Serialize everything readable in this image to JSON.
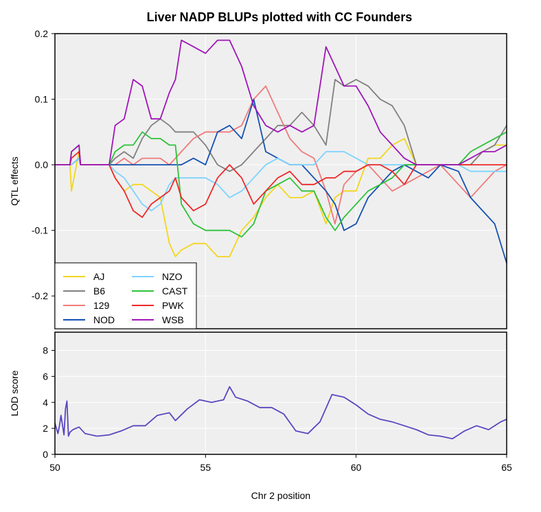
{
  "chart_data": {
    "type": "line",
    "title": "Liver NADP BLUPs plotted with CC Founders",
    "xlabel": "Chr 2 position",
    "xlim": [
      50,
      65
    ],
    "xticks": [
      50,
      55,
      60,
      65
    ],
    "grid": true,
    "panels": [
      {
        "id": "effects",
        "ylabel": "QTL effects",
        "ylim": [
          -0.25,
          0.2
        ],
        "yticks": [
          0.2,
          0.1,
          0.0,
          -0.1,
          -0.2
        ],
        "ytick_labels": [
          "0.2",
          "0.1",
          "0.0",
          "-0.1",
          "-0.2"
        ],
        "legend_position": "bottom-left",
        "series": [
          {
            "name": "AJ",
            "color": "#F2D61E",
            "x": [
              50,
              50.5,
              50.55,
              50.8,
              50.85,
              51.8,
              52,
              52.3,
              52.6,
              52.9,
              53.2,
              53.5,
              53.8,
              54.0,
              54.2,
              54.6,
              55.0,
              55.4,
              55.8,
              56.2,
              56.6,
              57.0,
              57.4,
              57.8,
              58.2,
              58.6,
              59.0,
              59.3,
              59.6,
              60.0,
              60.4,
              60.8,
              61.2,
              61.6,
              62.0,
              62.4,
              62.8,
              63.4,
              63.8,
              64.2,
              64.6,
              65.0
            ],
            "y": [
              0,
              0,
              -0.04,
              0.02,
              0,
              0,
              -0.02,
              -0.04,
              -0.03,
              -0.03,
              -0.04,
              -0.05,
              -0.12,
              -0.14,
              -0.13,
              -0.12,
              -0.12,
              -0.14,
              -0.14,
              -0.1,
              -0.08,
              -0.05,
              -0.03,
              -0.05,
              -0.05,
              -0.04,
              -0.09,
              -0.05,
              -0.04,
              -0.04,
              0.01,
              0.01,
              0.03,
              0.04,
              0.0,
              0.0,
              0.0,
              0.0,
              0.0,
              0.02,
              0.03,
              0.03
            ]
          },
          {
            "name": "B6",
            "color": "#808080",
            "x": [
              50,
              50.5,
              50.55,
              50.8,
              50.85,
              51.8,
              52,
              52.3,
              52.6,
              52.9,
              53.2,
              53.5,
              53.8,
              54.0,
              54.2,
              54.6,
              55.0,
              55.4,
              55.8,
              56.2,
              56.6,
              57.0,
              57.4,
              57.8,
              58.2,
              58.6,
              59.0,
              59.3,
              59.6,
              60.0,
              60.4,
              60.8,
              61.2,
              61.6,
              62.0,
              62.4,
              62.8,
              63.4,
              63.8,
              64.2,
              64.6,
              65.0
            ],
            "y": [
              0,
              0,
              0.02,
              0.03,
              0,
              0,
              0.01,
              0.02,
              0.01,
              0.04,
              0.06,
              0.07,
              0.06,
              0.05,
              0.05,
              0.05,
              0.03,
              0.0,
              -0.01,
              0.0,
              0.02,
              0.04,
              0.06,
              0.06,
              0.08,
              0.06,
              0.03,
              0.13,
              0.12,
              0.13,
              0.12,
              0.1,
              0.09,
              0.06,
              0.0,
              0.0,
              0.0,
              0.0,
              0.0,
              0.02,
              0.03,
              0.06
            ]
          },
          {
            "name": "129",
            "color": "#F07A7A",
            "x": [
              50,
              50.5,
              50.55,
              50.8,
              50.85,
              51.8,
              52,
              52.3,
              52.6,
              52.9,
              53.2,
              53.5,
              53.8,
              54.0,
              54.2,
              54.6,
              55.0,
              55.4,
              55.8,
              56.2,
              56.6,
              57.0,
              57.4,
              57.8,
              58.2,
              58.6,
              59.0,
              59.3,
              59.6,
              60.0,
              60.4,
              60.8,
              61.2,
              61.6,
              62.0,
              62.4,
              62.8,
              63.4,
              63.8,
              64.2,
              64.6,
              65.0
            ],
            "y": [
              0,
              0,
              0.0,
              0.01,
              0,
              0,
              0.0,
              0.01,
              0.0,
              0.01,
              0.01,
              0.01,
              0.0,
              0.01,
              0.02,
              0.04,
              0.05,
              0.05,
              0.05,
              0.06,
              0.1,
              0.12,
              0.08,
              0.04,
              0.02,
              0.01,
              -0.04,
              -0.09,
              -0.03,
              -0.01,
              0.0,
              -0.02,
              -0.04,
              -0.03,
              -0.02,
              -0.01,
              0.0,
              -0.03,
              -0.05,
              -0.03,
              -0.01,
              0.0
            ]
          },
          {
            "name": "NOD",
            "color": "#1451B0",
            "x": [
              50,
              50.5,
              50.55,
              50.8,
              50.85,
              51.8,
              52,
              52.3,
              52.6,
              52.9,
              53.2,
              53.5,
              53.8,
              54.0,
              54.2,
              54.6,
              55.0,
              55.4,
              55.8,
              56.2,
              56.6,
              57.0,
              57.4,
              57.8,
              58.2,
              58.6,
              59.0,
              59.3,
              59.6,
              60.0,
              60.4,
              60.8,
              61.2,
              61.6,
              62.0,
              62.4,
              62.8,
              63.4,
              63.8,
              64.2,
              64.6,
              65.0
            ],
            "y": [
              0,
              0,
              0.0,
              0.01,
              0,
              0,
              0.0,
              0.0,
              0.0,
              0.0,
              0.0,
              0.0,
              0.0,
              0.0,
              0.0,
              0.01,
              0.0,
              0.05,
              0.06,
              0.04,
              0.1,
              0.02,
              0.01,
              0.0,
              0.0,
              -0.02,
              -0.04,
              -0.06,
              -0.1,
              -0.09,
              -0.05,
              -0.03,
              -0.01,
              0.0,
              -0.01,
              -0.02,
              0.0,
              -0.01,
              -0.05,
              -0.07,
              -0.09,
              -0.15
            ]
          },
          {
            "name": "NZO",
            "color": "#7DD3FF",
            "x": [
              50,
              50.5,
              50.55,
              50.8,
              50.85,
              51.8,
              52,
              52.3,
              52.6,
              52.9,
              53.2,
              53.5,
              53.8,
              54.0,
              54.2,
              54.6,
              55.0,
              55.4,
              55.8,
              56.2,
              56.6,
              57.0,
              57.4,
              57.8,
              58.2,
              58.6,
              59.0,
              59.3,
              59.6,
              60.0,
              60.4,
              60.8,
              61.2,
              61.6,
              62.0,
              62.4,
              62.8,
              63.4,
              63.8,
              64.2,
              64.6,
              65.0
            ],
            "y": [
              0,
              0,
              0.0,
              0.01,
              0,
              0,
              -0.01,
              -0.02,
              -0.04,
              -0.06,
              -0.07,
              -0.06,
              -0.03,
              -0.02,
              -0.02,
              -0.02,
              -0.02,
              -0.03,
              -0.05,
              -0.04,
              -0.02,
              0.0,
              0.01,
              0.0,
              0.0,
              0.0,
              0.02,
              0.02,
              0.02,
              0.01,
              0.0,
              0.0,
              0.0,
              0.0,
              0.0,
              0.0,
              0.0,
              0.0,
              -0.01,
              -0.01,
              -0.01,
              -0.01
            ]
          },
          {
            "name": "CAST",
            "color": "#2EC23A",
            "x": [
              50,
              50.5,
              50.55,
              50.8,
              50.85,
              51.8,
              52,
              52.3,
              52.6,
              52.9,
              53.2,
              53.5,
              53.8,
              54.0,
              54.2,
              54.6,
              55.0,
              55.4,
              55.8,
              56.2,
              56.6,
              57.0,
              57.4,
              57.8,
              58.2,
              58.6,
              59.0,
              59.3,
              59.6,
              60.0,
              60.4,
              60.8,
              61.2,
              61.6,
              62.0,
              62.4,
              62.8,
              63.4,
              63.8,
              64.2,
              64.6,
              65.0
            ],
            "y": [
              0,
              0,
              0.02,
              0.03,
              0,
              0,
              0.02,
              0.03,
              0.03,
              0.05,
              0.04,
              0.04,
              0.03,
              0.03,
              -0.06,
              -0.09,
              -0.1,
              -0.1,
              -0.1,
              -0.11,
              -0.09,
              -0.04,
              -0.03,
              -0.02,
              -0.04,
              -0.04,
              -0.08,
              -0.1,
              -0.08,
              -0.06,
              -0.04,
              -0.03,
              -0.02,
              0.0,
              0.0,
              0.0,
              0.0,
              0.0,
              0.02,
              0.03,
              0.04,
              0.05
            ]
          },
          {
            "name": "PWK",
            "color": "#F02828",
            "x": [
              50,
              50.5,
              50.55,
              50.8,
              50.85,
              51.8,
              52,
              52.3,
              52.6,
              52.9,
              53.2,
              53.5,
              53.8,
              54.0,
              54.2,
              54.6,
              55.0,
              55.4,
              55.8,
              56.2,
              56.6,
              57.0,
              57.4,
              57.8,
              58.2,
              58.6,
              59.0,
              59.3,
              59.6,
              60.0,
              60.4,
              60.8,
              61.2,
              61.6,
              62.0,
              62.4,
              62.8,
              63.4,
              63.8,
              64.2,
              64.6,
              65.0
            ],
            "y": [
              0,
              0,
              0.01,
              0.02,
              0,
              0,
              -0.02,
              -0.04,
              -0.07,
              -0.08,
              -0.06,
              -0.05,
              -0.04,
              -0.02,
              -0.05,
              -0.07,
              -0.06,
              -0.02,
              0.0,
              -0.02,
              -0.06,
              -0.04,
              -0.02,
              -0.01,
              -0.03,
              -0.03,
              -0.02,
              -0.02,
              -0.01,
              -0.01,
              0.0,
              0.0,
              -0.01,
              -0.03,
              0.0,
              0.0,
              0.0,
              0.0,
              0.0,
              0.0,
              0.0,
              0.0
            ]
          },
          {
            "name": "WSB",
            "color": "#A014B8",
            "x": [
              50,
              50.5,
              50.55,
              50.8,
              50.85,
              51.8,
              52,
              52.3,
              52.6,
              52.9,
              53.2,
              53.5,
              53.8,
              54.0,
              54.2,
              54.6,
              55.0,
              55.4,
              55.8,
              56.2,
              56.6,
              57.0,
              57.4,
              57.8,
              58.2,
              58.6,
              59.0,
              59.3,
              59.6,
              60.0,
              60.4,
              60.8,
              61.2,
              61.6,
              62.0,
              62.4,
              62.8,
              63.4,
              63.8,
              64.2,
              64.6,
              65.0
            ],
            "y": [
              0,
              0,
              0.02,
              0.03,
              0,
              0,
              0.06,
              0.07,
              0.13,
              0.12,
              0.07,
              0.07,
              0.11,
              0.13,
              0.19,
              0.18,
              0.17,
              0.19,
              0.19,
              0.15,
              0.09,
              0.06,
              0.05,
              0.06,
              0.05,
              0.06,
              0.18,
              0.15,
              0.12,
              0.12,
              0.09,
              0.05,
              0.03,
              0.01,
              0.0,
              0.0,
              0.0,
              0.0,
              0.01,
              0.02,
              0.02,
              0.03
            ]
          }
        ]
      },
      {
        "id": "lod",
        "ylabel": "LOD score",
        "ylim": [
          0,
          9.4
        ],
        "yticks": [
          0,
          2,
          4,
          6,
          8
        ],
        "ytick_labels": [
          "0",
          "2",
          "4",
          "6",
          "8"
        ],
        "series": [
          {
            "name": "",
            "color": "#5A46C0",
            "x": [
              50,
              50.1,
              50.15,
              50.2,
              50.3,
              50.35,
              50.4,
              50.45,
              50.5,
              50.6,
              50.8,
              51.0,
              51.4,
              51.8,
              52.2,
              52.6,
              53.0,
              53.4,
              53.8,
              54.0,
              54.4,
              54.8,
              55.2,
              55.6,
              55.8,
              56.0,
              56.4,
              56.8,
              57.2,
              57.6,
              58.0,
              58.4,
              58.8,
              59.2,
              59.6,
              60.0,
              60.4,
              60.8,
              61.2,
              61.6,
              62.0,
              62.4,
              62.8,
              63.2,
              63.6,
              64.0,
              64.4,
              64.8,
              65.0
            ],
            "y": [
              2.4,
              1.6,
              2.2,
              3.0,
              1.5,
              3.5,
              4.1,
              1.4,
              1.7,
              1.9,
              2.1,
              1.6,
              1.4,
              1.5,
              1.8,
              2.2,
              2.2,
              3.0,
              3.2,
              2.6,
              3.5,
              4.2,
              4.0,
              4.2,
              5.2,
              4.4,
              4.1,
              3.6,
              3.6,
              3.1,
              1.8,
              1.6,
              2.5,
              4.6,
              4.4,
              3.8,
              3.1,
              2.7,
              2.5,
              2.2,
              1.9,
              1.5,
              1.4,
              1.2,
              1.8,
              2.2,
              1.9,
              2.5,
              2.7
            ]
          }
        ]
      }
    ]
  }
}
